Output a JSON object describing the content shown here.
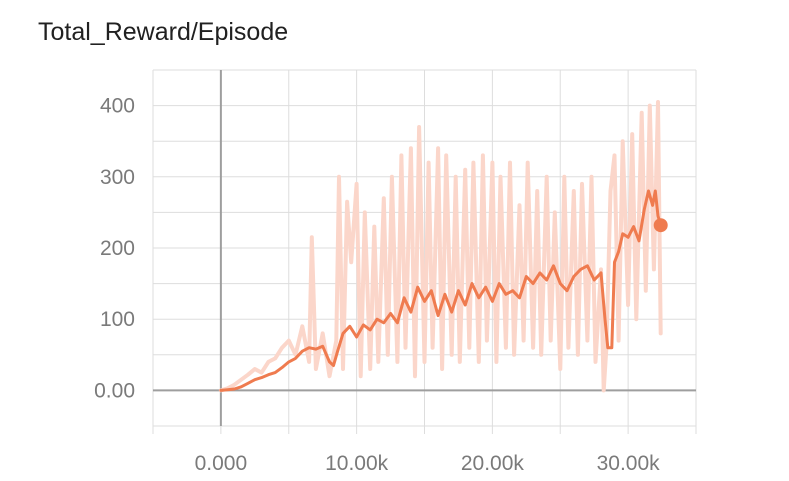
{
  "chart_data": {
    "type": "line",
    "title": "Total_Reward/Episode",
    "xlabel": "",
    "ylabel": "",
    "xlim": [
      -5000,
      35000
    ],
    "ylim": [
      -50,
      450
    ],
    "grid": true,
    "x_ticks": [
      0,
      10000,
      20000,
      30000
    ],
    "x_tick_labels": [
      "0.000",
      "10.00k",
      "20.00k",
      "30.00k"
    ],
    "y_ticks": [
      0,
      100,
      200,
      300,
      400
    ],
    "y_tick_labels": [
      "0.00",
      "100",
      "200",
      "300",
      "400"
    ],
    "colors": {
      "smoothed": "#ef7b4f",
      "raw": "#fbd6ca",
      "grid": "#dddddd",
      "axis": "#9e9e9e"
    },
    "series": [
      {
        "role": "raw",
        "x": [
          0,
          500,
          1000,
          1500,
          2000,
          2500,
          3000,
          3500,
          4000,
          4500,
          5000,
          5500,
          6000,
          6500,
          6700,
          7000,
          7500,
          8000,
          8500,
          8700,
          9000,
          9300,
          9600,
          10000,
          10300,
          10600,
          11000,
          11300,
          11600,
          12000,
          12300,
          12600,
          13000,
          13300,
          13600,
          14000,
          14300,
          14600,
          15000,
          15300,
          15600,
          16000,
          16300,
          16600,
          17000,
          17300,
          17600,
          18000,
          18300,
          18600,
          19000,
          19300,
          19600,
          20000,
          20300,
          20600,
          21000,
          21300,
          21600,
          22000,
          22300,
          22600,
          23000,
          23300,
          23600,
          24000,
          24300,
          24600,
          25000,
          25300,
          25600,
          26000,
          26300,
          26600,
          27000,
          27300,
          27600,
          28000,
          28200,
          28400,
          28700,
          29000,
          29300,
          29600,
          30000,
          30300,
          30600,
          31000,
          31300,
          31600,
          31900,
          32200,
          32400
        ],
        "y": [
          0,
          3,
          8,
          15,
          22,
          30,
          25,
          40,
          45,
          60,
          70,
          50,
          90,
          40,
          215,
          30,
          80,
          20,
          70,
          300,
          30,
          265,
          180,
          290,
          20,
          250,
          30,
          230,
          40,
          270,
          50,
          300,
          40,
          330,
          60,
          340,
          20,
          370,
          40,
          320,
          60,
          340,
          30,
          330,
          50,
          300,
          40,
          310,
          60,
          320,
          40,
          330,
          70,
          320,
          40,
          300,
          60,
          320,
          50,
          260,
          70,
          320,
          60,
          280,
          50,
          300,
          70,
          250,
          30,
          300,
          60,
          280,
          50,
          290,
          70,
          300,
          40,
          170,
          0,
          60,
          280,
          330,
          70,
          350,
          120,
          360,
          100,
          390,
          140,
          400,
          170,
          405,
          80
        ]
      },
      {
        "role": "smoothed",
        "x": [
          0,
          500,
          1000,
          1500,
          2000,
          2500,
          3000,
          3500,
          4000,
          4500,
          5000,
          5500,
          6000,
          6500,
          7000,
          7500,
          8000,
          8300,
          8600,
          9000,
          9500,
          10000,
          10500,
          11000,
          11500,
          12000,
          12500,
          13000,
          13500,
          14000,
          14500,
          15000,
          15500,
          16000,
          16500,
          17000,
          17500,
          18000,
          18500,
          19000,
          19500,
          20000,
          20500,
          21000,
          21500,
          22000,
          22500,
          23000,
          23500,
          24000,
          24500,
          25000,
          25500,
          26000,
          26500,
          27000,
          27500,
          28000,
          28300,
          28500,
          28800,
          29000,
          29300,
          29600,
          30000,
          30400,
          30800,
          31200,
          31500,
          31800,
          32000,
          32200,
          32400
        ],
        "y": [
          0,
          1,
          2,
          5,
          10,
          15,
          18,
          22,
          25,
          32,
          40,
          45,
          55,
          60,
          58,
          62,
          40,
          35,
          55,
          80,
          90,
          75,
          92,
          85,
          100,
          95,
          108,
          95,
          130,
          110,
          145,
          125,
          140,
          105,
          135,
          110,
          140,
          120,
          150,
          130,
          145,
          125,
          150,
          135,
          140,
          130,
          160,
          150,
          165,
          155,
          175,
          150,
          140,
          160,
          170,
          175,
          155,
          165,
          100,
          60,
          60,
          180,
          195,
          220,
          215,
          230,
          210,
          255,
          280,
          260,
          280,
          245,
          232
        ]
      }
    ]
  }
}
